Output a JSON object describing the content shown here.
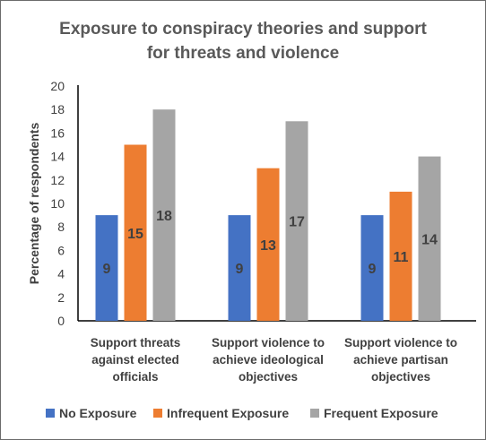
{
  "chart_data": {
    "type": "bar",
    "title_lines": [
      "Exposure to conspiracy theories and support",
      "for threats and violence"
    ],
    "ylabel": "Percentage of respondents",
    "xlabel": "",
    "ylim": [
      0,
      20
    ],
    "yticks": [
      0,
      2,
      4,
      6,
      8,
      10,
      12,
      14,
      16,
      18,
      20
    ],
    "grid": false,
    "legend_position": "bottom",
    "categories": [
      [
        "Support threats",
        "against elected",
        "officials"
      ],
      [
        "Support violence to",
        "achieve ideological",
        "objectives"
      ],
      [
        "Support violence to",
        "achieve partisan",
        "objectives"
      ]
    ],
    "series": [
      {
        "name": "No Exposure",
        "color": "#4472C4",
        "values": [
          9,
          9,
          9
        ]
      },
      {
        "name": "Infrequent Exposure",
        "color": "#ED7D31",
        "values": [
          15,
          13,
          11
        ]
      },
      {
        "name": "Frequent Exposure",
        "color": "#A5A5A5",
        "values": [
          18,
          17,
          14
        ]
      }
    ]
  }
}
